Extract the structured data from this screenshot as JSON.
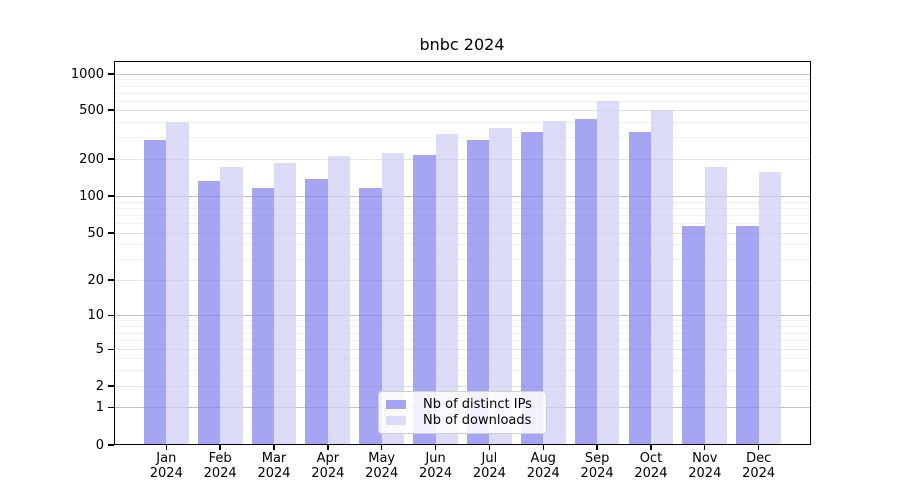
{
  "title": "bnbc 2024",
  "chart_data": {
    "type": "bar",
    "title": "bnbc 2024",
    "y_scale": "symlog",
    "ylim": [
      0,
      1300
    ],
    "grid": true,
    "legend_position": "lower-center",
    "y_tick_labels": [
      "0",
      "1",
      "2",
      "5",
      "10",
      "20",
      "50",
      "100",
      "200",
      "500",
      "1000"
    ],
    "categories": [
      {
        "month": "Jan",
        "year": "2024"
      },
      {
        "month": "Feb",
        "year": "2024"
      },
      {
        "month": "Mar",
        "year": "2024"
      },
      {
        "month": "Apr",
        "year": "2024"
      },
      {
        "month": "May",
        "year": "2024"
      },
      {
        "month": "Jun",
        "year": "2024"
      },
      {
        "month": "Jul",
        "year": "2024"
      },
      {
        "month": "Aug",
        "year": "2024"
      },
      {
        "month": "Sep",
        "year": "2024"
      },
      {
        "month": "Oct",
        "year": "2024"
      },
      {
        "month": "Nov",
        "year": "2024"
      },
      {
        "month": "Dec",
        "year": "2024"
      }
    ],
    "series": [
      {
        "name": "Nb of distinct IPs",
        "color": "#a8a8f2",
        "fill": "rgba(130, 130, 240, 0.72)",
        "values": [
          285,
          132,
          117,
          137,
          116,
          215,
          287,
          333,
          425,
          334,
          57,
          57
        ]
      },
      {
        "name": "Nb of downloads",
        "color": "#dcdcf8",
        "fill": "rgba(206, 206, 246, 0.72)",
        "values": [
          400,
          171,
          185,
          211,
          222,
          320,
          355,
          407,
          600,
          500,
          173,
          157
        ]
      }
    ]
  }
}
